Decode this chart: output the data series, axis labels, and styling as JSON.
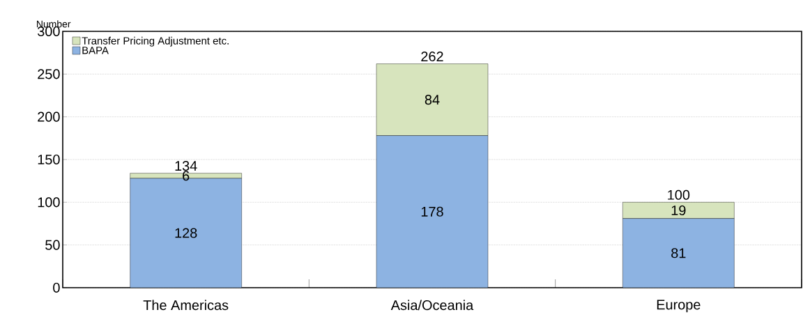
{
  "chart_data": {
    "type": "bar",
    "stacked": true,
    "ylabel": "Number",
    "categories": [
      "The Americas",
      "Asia/Oceania",
      "Europe"
    ],
    "series": [
      {
        "name": "BAPA",
        "color": "#8db3e2",
        "values": [
          128,
          178,
          81
        ]
      },
      {
        "name": "Transfer Pricing Adjustment etc.",
        "color": "#d7e4bd",
        "values": [
          6,
          84,
          19
        ]
      }
    ],
    "totals": [
      "134",
      "262",
      "100"
    ],
    "data_labels": true,
    "ylim": [
      0,
      300
    ],
    "yticks": [
      0,
      50,
      100,
      150,
      200,
      250,
      300
    ],
    "grid": "y",
    "legend": "top left"
  }
}
